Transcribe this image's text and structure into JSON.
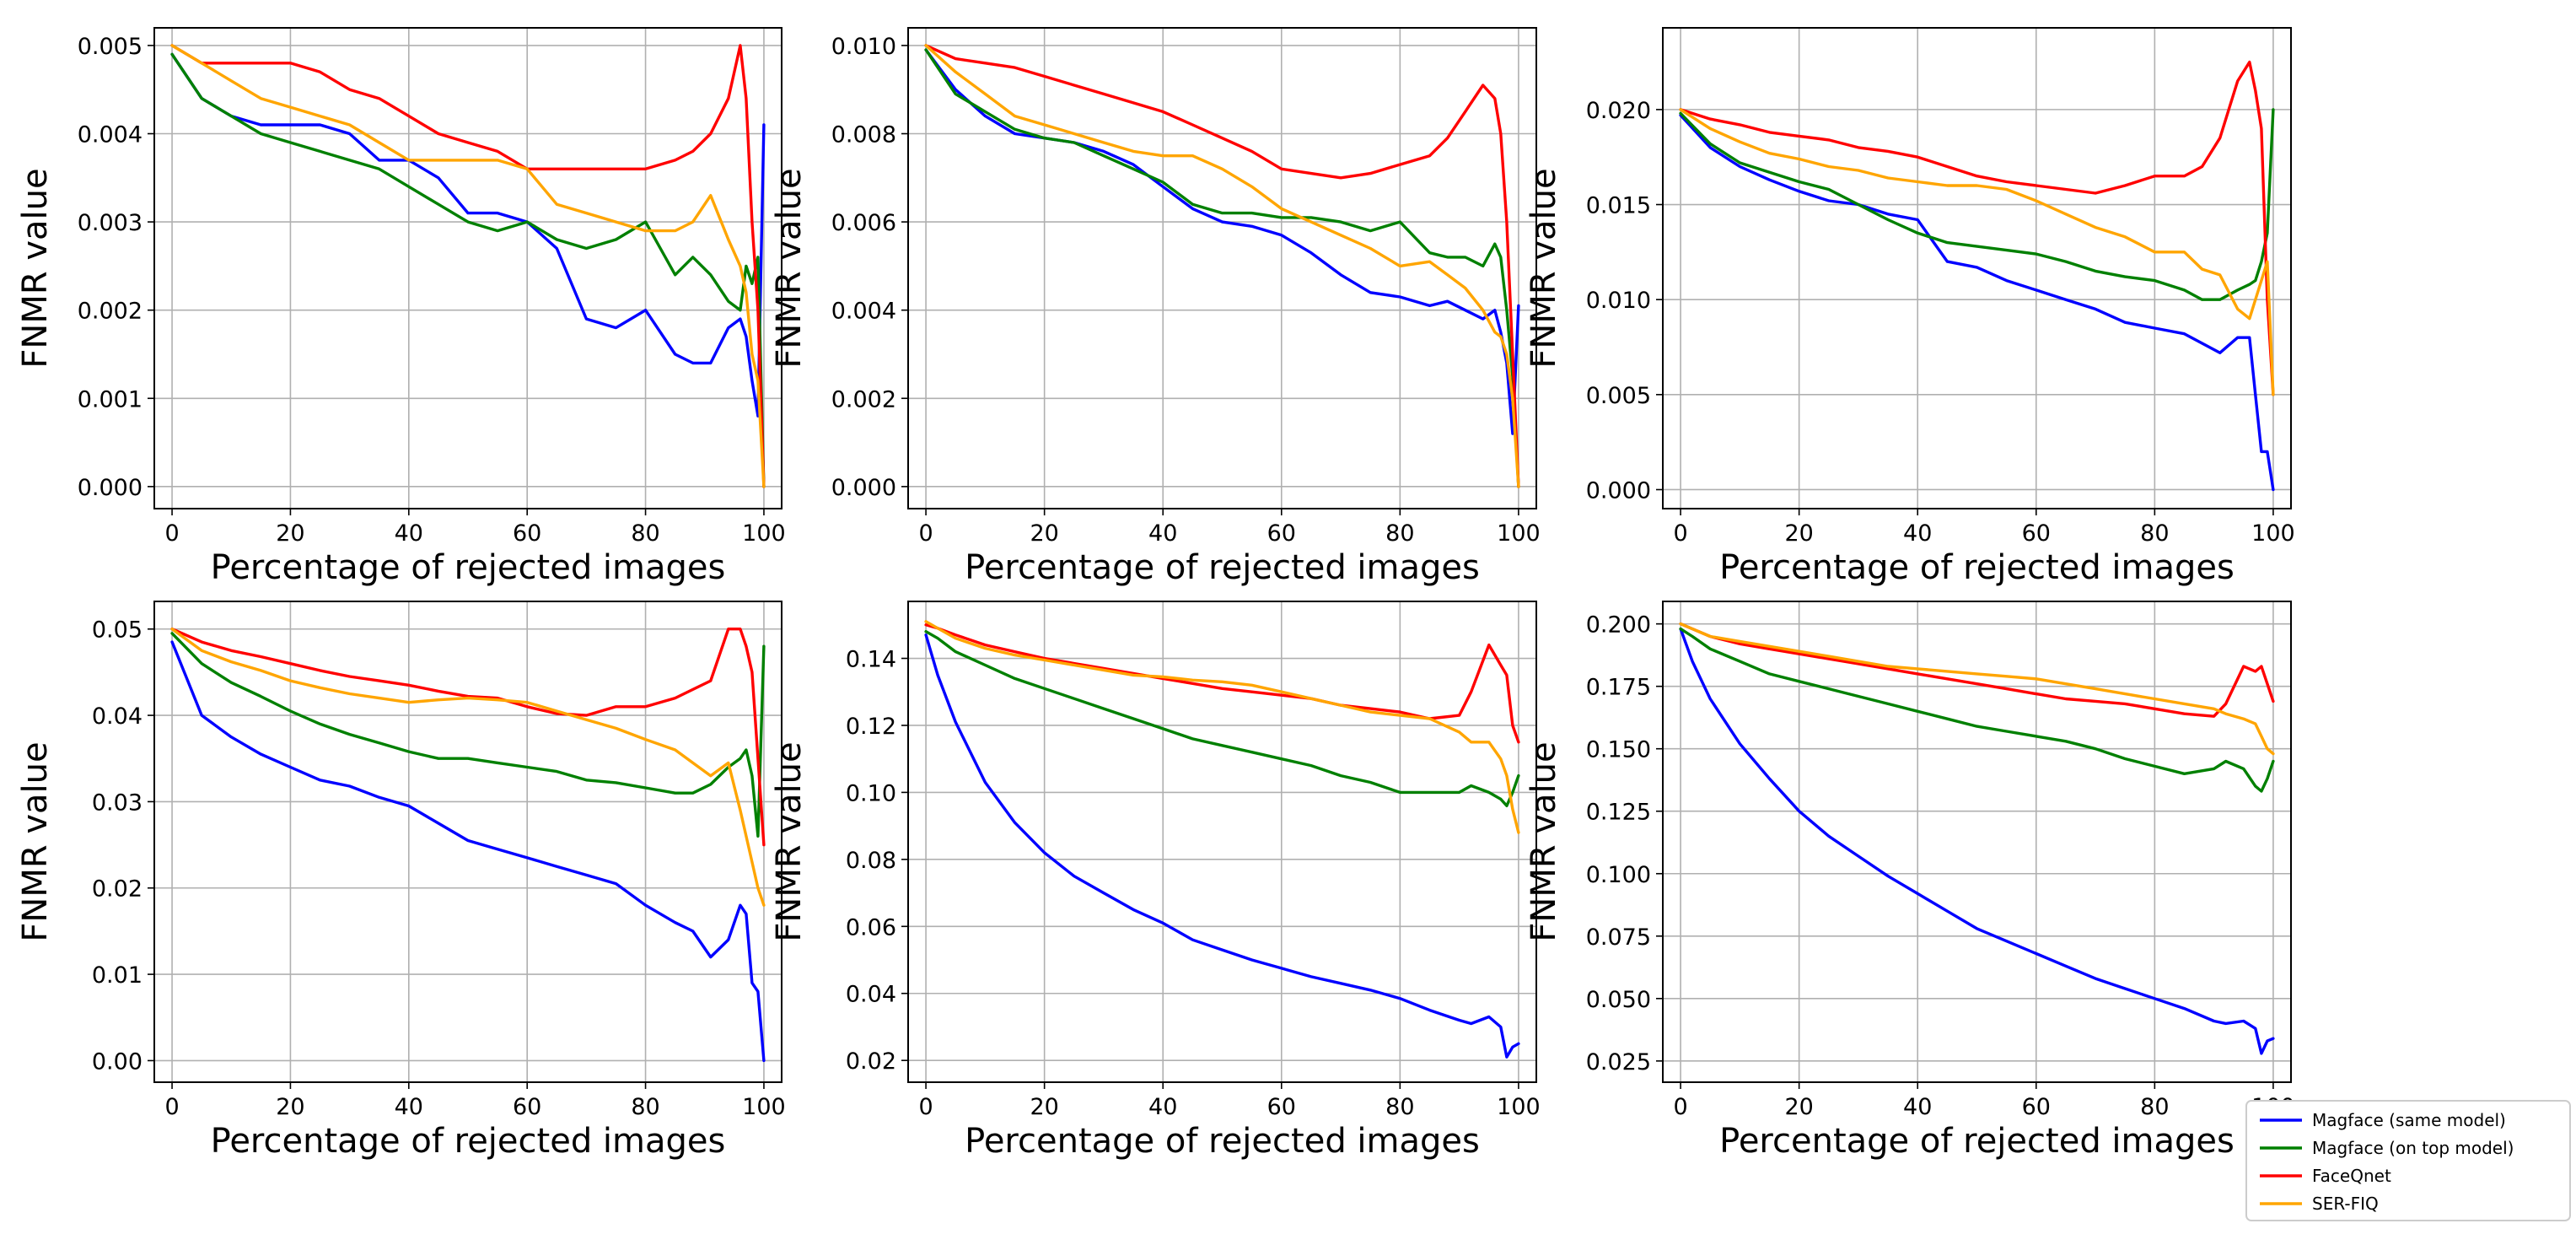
{
  "colors": {
    "magface_same": "#0000ff",
    "magface_top": "#008000",
    "faceqnet": "#ff0000",
    "serfiq": "#ffa500"
  },
  "legend": {
    "entries": [
      {
        "label": "Magface (same model)",
        "color": "#0000ff"
      },
      {
        "label": "Magface (on top model)",
        "color": "#008000"
      },
      {
        "label": "FaceQnet",
        "color": "#ff0000"
      },
      {
        "label": "SER-FIQ",
        "color": "#ffa500"
      }
    ]
  },
  "chart_data": [
    {
      "type": "line",
      "xlabel": "Percentage of rejected images",
      "ylabel": "FNMR value",
      "xlim": [
        -3,
        103
      ],
      "ylim": [
        -0.00025,
        0.0052
      ],
      "xticks": [
        "0",
        "20",
        "40",
        "60",
        "80",
        "100"
      ],
      "yticks": [
        "0.000",
        "0.001",
        "0.002",
        "0.003",
        "0.004",
        "0.005"
      ],
      "x": [
        0,
        5,
        10,
        15,
        20,
        25,
        30,
        35,
        40,
        45,
        50,
        55,
        60,
        65,
        70,
        75,
        80,
        85,
        88,
        91,
        94,
        96,
        97,
        98,
        99,
        100
      ],
      "series": [
        {
          "name": "Magface (same model)",
          "values": [
            0.0049,
            0.0044,
            0.0042,
            0.0041,
            0.0041,
            0.0041,
            0.004,
            0.0037,
            0.0037,
            0.0035,
            0.0031,
            0.0031,
            0.003,
            0.0027,
            0.0019,
            0.0018,
            0.002,
            0.0015,
            0.0014,
            0.0014,
            0.0018,
            0.0019,
            0.0017,
            0.0012,
            0.0008,
            0.0041
          ]
        },
        {
          "name": "Magface (on top model)",
          "values": [
            0.0049,
            0.0044,
            0.0042,
            0.004,
            0.0039,
            0.0038,
            0.0037,
            0.0036,
            0.0034,
            0.0032,
            0.003,
            0.0029,
            0.003,
            0.0028,
            0.0027,
            0.0028,
            0.003,
            0.0024,
            0.0026,
            0.0024,
            0.0021,
            0.002,
            0.0025,
            0.0023,
            0.0026,
            0.0
          ]
        },
        {
          "name": "FaceQnet",
          "values": [
            0.005,
            0.0048,
            0.0048,
            0.0048,
            0.0048,
            0.0047,
            0.0045,
            0.0044,
            0.0042,
            0.004,
            0.0039,
            0.0038,
            0.0036,
            0.0036,
            0.0036,
            0.0036,
            0.0036,
            0.0037,
            0.0038,
            0.004,
            0.0044,
            0.005,
            0.0044,
            0.003,
            0.002,
            0.0
          ]
        },
        {
          "name": "SER-FIQ",
          "values": [
            0.005,
            0.0048,
            0.0046,
            0.0044,
            0.0043,
            0.0042,
            0.0041,
            0.0039,
            0.0037,
            0.0037,
            0.0037,
            0.0037,
            0.0036,
            0.0032,
            0.0031,
            0.003,
            0.0029,
            0.0029,
            0.003,
            0.0033,
            0.0028,
            0.0025,
            0.0022,
            0.0015,
            0.0012,
            0.0
          ]
        }
      ]
    },
    {
      "type": "line",
      "xlabel": "Percentage of rejected images",
      "ylabel": "FNMR value",
      "xlim": [
        -3,
        103
      ],
      "ylim": [
        -0.0005,
        0.0104
      ],
      "xticks": [
        "0",
        "20",
        "40",
        "60",
        "80",
        "100"
      ],
      "yticks": [
        "0.000",
        "0.002",
        "0.004",
        "0.006",
        "0.008",
        "0.010"
      ],
      "x": [
        0,
        5,
        10,
        15,
        20,
        25,
        30,
        35,
        40,
        45,
        50,
        55,
        60,
        65,
        70,
        75,
        80,
        85,
        88,
        91,
        94,
        96,
        97,
        98,
        99,
        100
      ],
      "series": [
        {
          "name": "Magface (same model)",
          "values": [
            0.0099,
            0.009,
            0.0084,
            0.008,
            0.0079,
            0.0078,
            0.0076,
            0.0073,
            0.0068,
            0.0063,
            0.006,
            0.0059,
            0.0057,
            0.0053,
            0.0048,
            0.0044,
            0.0043,
            0.0041,
            0.0042,
            0.004,
            0.0038,
            0.004,
            0.0035,
            0.0028,
            0.0012,
            0.0041
          ]
        },
        {
          "name": "Magface (on top model)",
          "values": [
            0.0099,
            0.0089,
            0.0085,
            0.0081,
            0.0079,
            0.0078,
            0.0075,
            0.0072,
            0.0069,
            0.0064,
            0.0062,
            0.0062,
            0.0061,
            0.0061,
            0.006,
            0.0058,
            0.006,
            0.0053,
            0.0052,
            0.0052,
            0.005,
            0.0055,
            0.0052,
            0.004,
            0.0025,
            0.0
          ]
        },
        {
          "name": "FaceQnet",
          "values": [
            0.01,
            0.0097,
            0.0096,
            0.0095,
            0.0093,
            0.0091,
            0.0089,
            0.0087,
            0.0085,
            0.0082,
            0.0079,
            0.0076,
            0.0072,
            0.0071,
            0.007,
            0.0071,
            0.0073,
            0.0075,
            0.0079,
            0.0085,
            0.0091,
            0.0088,
            0.008,
            0.006,
            0.003,
            0.0
          ]
        },
        {
          "name": "SER-FIQ",
          "values": [
            0.01,
            0.0094,
            0.0089,
            0.0084,
            0.0082,
            0.008,
            0.0078,
            0.0076,
            0.0075,
            0.0075,
            0.0072,
            0.0068,
            0.0063,
            0.006,
            0.0057,
            0.0054,
            0.005,
            0.0051,
            0.0048,
            0.0045,
            0.004,
            0.0035,
            0.0034,
            0.003,
            0.002,
            0.0
          ]
        }
      ]
    },
    {
      "type": "line",
      "xlabel": "Percentage of rejected images",
      "ylabel": "FNMR value",
      "xlim": [
        -3,
        103
      ],
      "ylim": [
        -0.001,
        0.0243
      ],
      "xticks": [
        "0",
        "20",
        "40",
        "60",
        "80",
        "100"
      ],
      "yticks": [
        "0.000",
        "0.005",
        "0.010",
        "0.015",
        "0.020"
      ],
      "x": [
        0,
        5,
        10,
        15,
        20,
        25,
        30,
        35,
        40,
        45,
        50,
        55,
        60,
        65,
        70,
        75,
        80,
        85,
        88,
        91,
        94,
        96,
        97,
        98,
        99,
        100
      ],
      "series": [
        {
          "name": "Magface (same model)",
          "values": [
            0.0197,
            0.018,
            0.017,
            0.0163,
            0.0157,
            0.0152,
            0.015,
            0.0145,
            0.0142,
            0.012,
            0.0117,
            0.011,
            0.0105,
            0.01,
            0.0095,
            0.0088,
            0.0085,
            0.0082,
            0.0077,
            0.0072,
            0.008,
            0.008,
            0.005,
            0.002,
            0.002,
            0.0
          ]
        },
        {
          "name": "Magface (on top model)",
          "values": [
            0.0198,
            0.0182,
            0.0172,
            0.0167,
            0.0162,
            0.0158,
            0.015,
            0.0142,
            0.0135,
            0.013,
            0.0128,
            0.0126,
            0.0124,
            0.012,
            0.0115,
            0.0112,
            0.011,
            0.0105,
            0.01,
            0.01,
            0.0105,
            0.0108,
            0.011,
            0.012,
            0.0135,
            0.02
          ]
        },
        {
          "name": "FaceQnet",
          "values": [
            0.02,
            0.0195,
            0.0192,
            0.0188,
            0.0186,
            0.0184,
            0.018,
            0.0178,
            0.0175,
            0.017,
            0.0165,
            0.0162,
            0.016,
            0.0158,
            0.0156,
            0.016,
            0.0165,
            0.0165,
            0.017,
            0.0185,
            0.0215,
            0.0225,
            0.021,
            0.019,
            0.01,
            0.005
          ]
        },
        {
          "name": "SER-FIQ",
          "values": [
            0.02,
            0.019,
            0.0183,
            0.0177,
            0.0174,
            0.017,
            0.0168,
            0.0164,
            0.0162,
            0.016,
            0.016,
            0.0158,
            0.0152,
            0.0145,
            0.0138,
            0.0133,
            0.0125,
            0.0125,
            0.0116,
            0.0113,
            0.0095,
            0.009,
            0.01,
            0.011,
            0.012,
            0.005
          ]
        }
      ]
    },
    {
      "type": "line",
      "xlabel": "Percentage of rejected images",
      "ylabel": "FNMR value",
      "xlim": [
        -3,
        103
      ],
      "ylim": [
        -0.0025,
        0.0532
      ],
      "xticks": [
        "0",
        "20",
        "40",
        "60",
        "80",
        "100"
      ],
      "yticks": [
        "0.00",
        "0.01",
        "0.02",
        "0.03",
        "0.04",
        "0.05"
      ],
      "x": [
        0,
        5,
        10,
        15,
        20,
        25,
        30,
        35,
        40,
        45,
        50,
        55,
        60,
        65,
        70,
        75,
        80,
        85,
        88,
        91,
        94,
        96,
        97,
        98,
        99,
        100
      ],
      "series": [
        {
          "name": "Magface (same model)",
          "values": [
            0.0485,
            0.04,
            0.0375,
            0.0355,
            0.034,
            0.0325,
            0.0318,
            0.0305,
            0.0295,
            0.0275,
            0.0255,
            0.0245,
            0.0235,
            0.0225,
            0.0215,
            0.0205,
            0.018,
            0.016,
            0.015,
            0.012,
            0.014,
            0.018,
            0.017,
            0.009,
            0.008,
            0.0
          ]
        },
        {
          "name": "Magface (on top model)",
          "values": [
            0.0495,
            0.046,
            0.0438,
            0.0422,
            0.0405,
            0.039,
            0.0378,
            0.0368,
            0.0358,
            0.035,
            0.035,
            0.0345,
            0.034,
            0.0335,
            0.0325,
            0.0322,
            0.0316,
            0.031,
            0.031,
            0.032,
            0.034,
            0.035,
            0.036,
            0.033,
            0.026,
            0.048
          ]
        },
        {
          "name": "FaceQnet",
          "values": [
            0.05,
            0.0485,
            0.0475,
            0.0468,
            0.046,
            0.0452,
            0.0445,
            0.044,
            0.0435,
            0.0428,
            0.0422,
            0.042,
            0.041,
            0.0402,
            0.04,
            0.041,
            0.041,
            0.042,
            0.043,
            0.044,
            0.05,
            0.05,
            0.048,
            0.045,
            0.035,
            0.025
          ]
        },
        {
          "name": "SER-FIQ",
          "values": [
            0.05,
            0.0475,
            0.0462,
            0.0452,
            0.044,
            0.0432,
            0.0425,
            0.042,
            0.0415,
            0.0418,
            0.042,
            0.0418,
            0.0415,
            0.0405,
            0.0395,
            0.0385,
            0.0372,
            0.036,
            0.0345,
            0.033,
            0.0345,
            0.029,
            0.026,
            0.023,
            0.02,
            0.018
          ]
        }
      ]
    },
    {
      "type": "line",
      "xlabel": "Percentage of rejected images",
      "ylabel": "FNMR value",
      "xlim": [
        -3,
        103
      ],
      "ylim": [
        0.0135,
        0.157
      ],
      "xticks": [
        "0",
        "20",
        "40",
        "60",
        "80",
        "100"
      ],
      "yticks": [
        "0.02",
        "0.04",
        "0.06",
        "0.08",
        "0.10",
        "0.12",
        "0.14"
      ],
      "x": [
        0,
        2,
        5,
        10,
        15,
        20,
        25,
        30,
        35,
        40,
        45,
        50,
        55,
        60,
        65,
        70,
        75,
        80,
        85,
        90,
        92,
        95,
        97,
        98,
        99,
        100
      ],
      "series": [
        {
          "name": "Magface (same model)",
          "values": [
            0.147,
            0.135,
            0.121,
            0.103,
            0.091,
            0.082,
            0.075,
            0.07,
            0.065,
            0.061,
            0.056,
            0.053,
            0.05,
            0.0475,
            0.045,
            0.043,
            0.041,
            0.0385,
            0.035,
            0.032,
            0.031,
            0.033,
            0.03,
            0.021,
            0.024,
            0.025
          ]
        },
        {
          "name": "Magface (on top model)",
          "values": [
            0.148,
            0.146,
            0.142,
            0.138,
            0.134,
            0.131,
            0.128,
            0.125,
            0.122,
            0.119,
            0.116,
            0.114,
            0.112,
            0.11,
            0.108,
            0.105,
            0.103,
            0.1,
            0.1,
            0.1,
            0.102,
            0.1,
            0.098,
            0.096,
            0.1,
            0.105
          ]
        },
        {
          "name": "FaceQnet",
          "values": [
            0.15,
            0.149,
            0.147,
            0.144,
            0.142,
            0.14,
            0.1385,
            0.137,
            0.1355,
            0.134,
            0.1325,
            0.131,
            0.13,
            0.129,
            0.128,
            0.126,
            0.125,
            0.124,
            0.122,
            0.123,
            0.13,
            0.144,
            0.138,
            0.135,
            0.12,
            0.115
          ]
        },
        {
          "name": "SER-FIQ",
          "values": [
            0.151,
            0.149,
            0.146,
            0.143,
            0.141,
            0.1395,
            0.138,
            0.1365,
            0.135,
            0.1345,
            0.1335,
            0.133,
            0.132,
            0.13,
            0.128,
            0.126,
            0.124,
            0.123,
            0.122,
            0.118,
            0.115,
            0.115,
            0.11,
            0.105,
            0.095,
            0.088
          ]
        }
      ]
    },
    {
      "type": "line",
      "xlabel": "Percentage of rejected images",
      "ylabel": "FNMR value",
      "xlim": [
        -3,
        103
      ],
      "ylim": [
        0.0165,
        0.209
      ],
      "xticks": [
        "0",
        "20",
        "40",
        "60",
        "80",
        "100"
      ],
      "yticks": [
        "0.025",
        "0.050",
        "0.075",
        "0.100",
        "0.125",
        "0.150",
        "0.175",
        "0.200"
      ],
      "x": [
        0,
        2,
        5,
        10,
        15,
        20,
        25,
        30,
        35,
        40,
        45,
        50,
        55,
        60,
        65,
        70,
        75,
        80,
        85,
        90,
        92,
        95,
        97,
        98,
        99,
        100
      ],
      "series": [
        {
          "name": "Magface (same model)",
          "values": [
            0.198,
            0.185,
            0.17,
            0.152,
            0.138,
            0.125,
            0.115,
            0.107,
            0.099,
            0.092,
            0.085,
            0.078,
            0.073,
            0.068,
            0.063,
            0.058,
            0.054,
            0.05,
            0.046,
            0.041,
            0.04,
            0.041,
            0.038,
            0.028,
            0.033,
            0.034
          ]
        },
        {
          "name": "Magface (on top model)",
          "values": [
            0.198,
            0.195,
            0.19,
            0.185,
            0.18,
            0.177,
            0.174,
            0.171,
            0.168,
            0.165,
            0.162,
            0.159,
            0.157,
            0.155,
            0.153,
            0.15,
            0.146,
            0.143,
            0.14,
            0.142,
            0.145,
            0.142,
            0.135,
            0.133,
            0.138,
            0.145
          ]
        },
        {
          "name": "FaceQnet",
          "values": [
            0.2,
            0.198,
            0.195,
            0.192,
            0.19,
            0.188,
            0.186,
            0.184,
            0.182,
            0.18,
            0.178,
            0.176,
            0.174,
            0.172,
            0.17,
            0.169,
            0.168,
            0.166,
            0.164,
            0.163,
            0.168,
            0.183,
            0.181,
            0.183,
            0.176,
            0.169
          ]
        },
        {
          "name": "SER-FIQ",
          "values": [
            0.2,
            0.198,
            0.195,
            0.193,
            0.191,
            0.189,
            0.187,
            0.185,
            0.183,
            0.182,
            0.181,
            0.18,
            0.179,
            0.178,
            0.176,
            0.174,
            0.172,
            0.17,
            0.168,
            0.166,
            0.164,
            0.162,
            0.16,
            0.155,
            0.15,
            0.148
          ]
        }
      ]
    }
  ]
}
